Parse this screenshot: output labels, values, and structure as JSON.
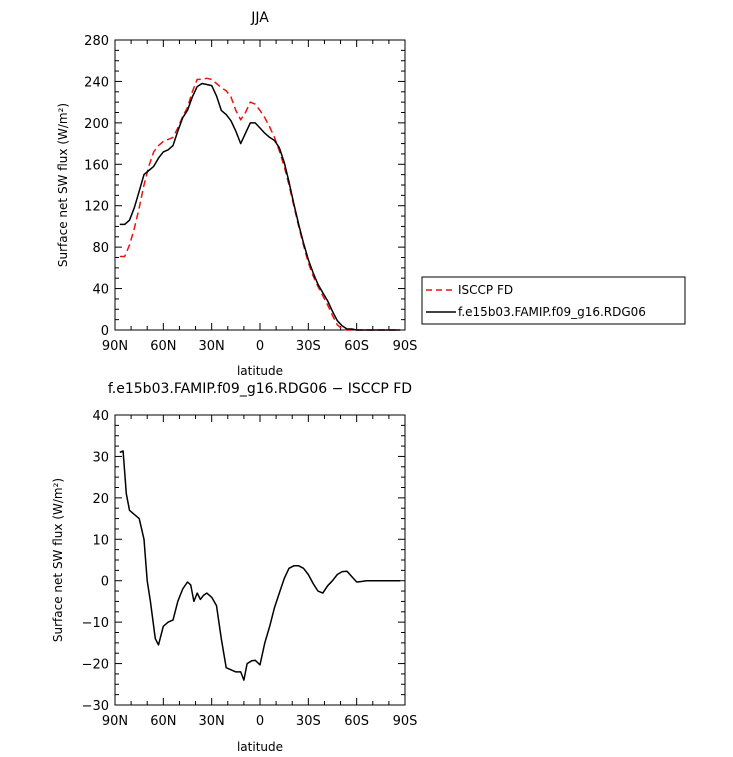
{
  "chart_data": [
    {
      "type": "line",
      "title": "JJA",
      "xlabel": "latitude",
      "ylabel": "Surface net SW flux (W/m²)",
      "x_ticks": [
        "90N",
        "60N",
        "30N",
        "0",
        "30S",
        "60S",
        "90S"
      ],
      "xlim": [
        90,
        -90
      ],
      "ylim": [
        0,
        280
      ],
      "y_ticks": [
        "0",
        "40",
        "80",
        "120",
        "160",
        "200",
        "240",
        "280"
      ],
      "legend_position": "right",
      "series": [
        {
          "name": "ISCCP FD",
          "color": "#e8150f",
          "dash": "dashed",
          "x": [
            87,
            84,
            81,
            78,
            75,
            72,
            69,
            66,
            63,
            60,
            57,
            54,
            51,
            48,
            45,
            42,
            39,
            36,
            33,
            30,
            27,
            24,
            21,
            18,
            15,
            12,
            9,
            6,
            3,
            0,
            -3,
            -6,
            -9,
            -12,
            -15,
            -18,
            -21,
            -24,
            -27,
            -30,
            -33,
            -36,
            -39,
            -42,
            -45,
            -48,
            -51,
            -54,
            -57,
            -60,
            -63,
            -66,
            -69,
            -72,
            -75,
            -78,
            -81,
            -84,
            -87
          ],
          "y": [
            71,
            71,
            82,
            98,
            118,
            140,
            158,
            172,
            178,
            182,
            184,
            186,
            195,
            206,
            215,
            230,
            242,
            242,
            243,
            242,
            238,
            234,
            231,
            225,
            212,
            203,
            210,
            220,
            218,
            212,
            205,
            196,
            186,
            173,
            158,
            140,
            120,
            100,
            82,
            65,
            52,
            42,
            33,
            24,
            14,
            5,
            1,
            0,
            0,
            0,
            0,
            0,
            0,
            0,
            0,
            0,
            0,
            0,
            0
          ]
        },
        {
          "name": "f.e15b03.FAMIP.f09_g16.RDG06",
          "color": "#000000",
          "dash": "solid",
          "x": [
            87,
            84,
            81,
            78,
            75,
            72,
            69,
            66,
            63,
            60,
            57,
            54,
            51,
            48,
            45,
            42,
            39,
            36,
            33,
            30,
            27,
            24,
            21,
            18,
            15,
            12,
            9,
            6,
            3,
            0,
            -3,
            -6,
            -9,
            -12,
            -15,
            -18,
            -21,
            -24,
            -27,
            -30,
            -33,
            -36,
            -39,
            -42,
            -45,
            -48,
            -51,
            -54,
            -57,
            -60,
            -63,
            -66,
            -69,
            -72,
            -75,
            -78,
            -81,
            -84,
            -87
          ],
          "y": [
            102,
            102,
            106,
            118,
            134,
            150,
            154,
            158,
            166,
            172,
            174,
            178,
            192,
            205,
            212,
            225,
            235,
            238,
            237,
            236,
            226,
            212,
            208,
            202,
            192,
            180,
            190,
            200,
            200,
            195,
            190,
            186,
            183,
            176,
            162,
            143,
            122,
            102,
            84,
            68,
            55,
            44,
            36,
            28,
            18,
            9,
            4,
            1,
            1,
            0,
            0,
            0,
            0,
            0,
            0,
            0,
            0,
            0,
            0
          ]
        }
      ]
    },
    {
      "type": "line",
      "title": "f.e15b03.FAMIP.f09_g16.RDG06 − ISCCP FD",
      "xlabel": "latitude",
      "ylabel": "Surface net SW flux (W/m²)",
      "x_ticks": [
        "90N",
        "60N",
        "30N",
        "0",
        "30S",
        "60S",
        "90S"
      ],
      "xlim": [
        90,
        -90
      ],
      "ylim": [
        -30,
        40
      ],
      "y_ticks": [
        "−30",
        "−20",
        "−10",
        "0",
        "10",
        "20",
        "30",
        "40"
      ],
      "series": [
        {
          "color": "#000000",
          "dash": "solid",
          "x": [
            87,
            85,
            83,
            81,
            78,
            75,
            72,
            70,
            68,
            65,
            63,
            60,
            57,
            54,
            51,
            48,
            45,
            43,
            41,
            39,
            37,
            35,
            33,
            30,
            27,
            24,
            21,
            18,
            15,
            12,
            10,
            8,
            5,
            3,
            0,
            -3,
            -6,
            -9,
            -12,
            -15,
            -18,
            -21,
            -24,
            -27,
            -30,
            -33,
            -36,
            -39,
            -42,
            -45,
            -48,
            -51,
            -54,
            -57,
            -60,
            -63,
            -66,
            -69,
            -72,
            -75,
            -78,
            -81,
            -84,
            -87
          ],
          "y": [
            31,
            31.3,
            21,
            17,
            16,
            15,
            10,
            0,
            -5,
            -14,
            -15.5,
            -11,
            -10,
            -9.5,
            -5,
            -2,
            -0.3,
            -1,
            -5,
            -3,
            -4.5,
            -3.5,
            -3,
            -4,
            -6,
            -14,
            -21,
            -21.5,
            -22,
            -22,
            -24,
            -20,
            -19.3,
            -19.2,
            -20.3,
            -15,
            -11,
            -6.5,
            -3,
            0.5,
            3,
            3.6,
            3.6,
            3,
            1.5,
            -0.7,
            -2.5,
            -3,
            -1.2,
            0,
            1.5,
            2.2,
            2.3,
            1,
            -0.3,
            -0.2,
            0,
            0,
            0,
            0,
            0,
            0,
            0,
            0
          ]
        }
      ]
    }
  ]
}
